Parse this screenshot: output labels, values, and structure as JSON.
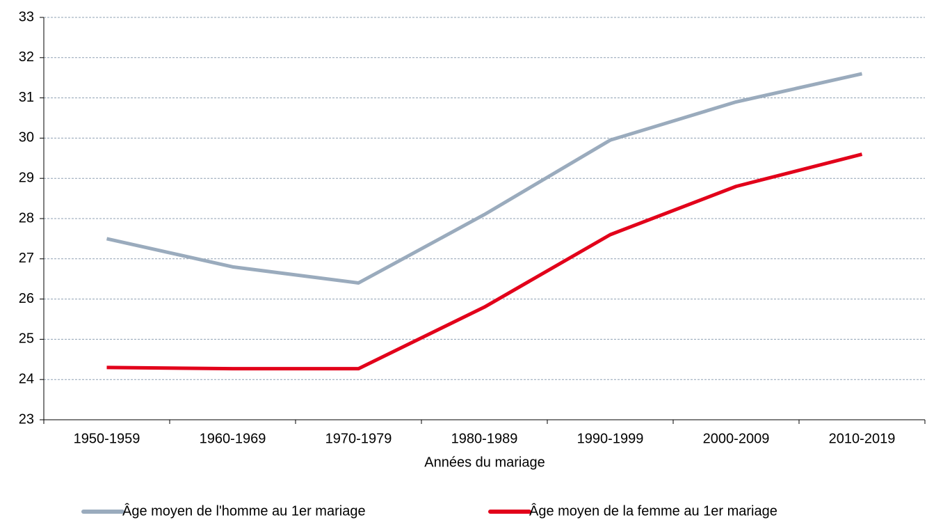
{
  "chart_data": {
    "type": "line",
    "x_label": "Années du mariage",
    "categories": [
      "1950-1959",
      "1960-1969",
      "1970-1979",
      "1980-1989",
      "1990-1999",
      "2000-2009",
      "2010-2019"
    ],
    "series": [
      {
        "name": "Âge moyen de l'homme au 1er mariage",
        "color": "#9aabbd",
        "values": [
          27.5,
          26.8,
          26.4,
          28.1,
          29.95,
          30.9,
          31.6
        ]
      },
      {
        "name": "Âge moyen de la femme au 1er mariage",
        "color": "#e2001a",
        "values": [
          24.3,
          24.27,
          24.27,
          25.8,
          27.6,
          28.8,
          29.6
        ]
      }
    ],
    "ylim": [
      23,
      33
    ],
    "yticks": [
      23,
      24,
      25,
      26,
      27,
      28,
      29,
      30,
      31,
      32,
      33
    ],
    "grid": true,
    "legend": "bottom"
  }
}
